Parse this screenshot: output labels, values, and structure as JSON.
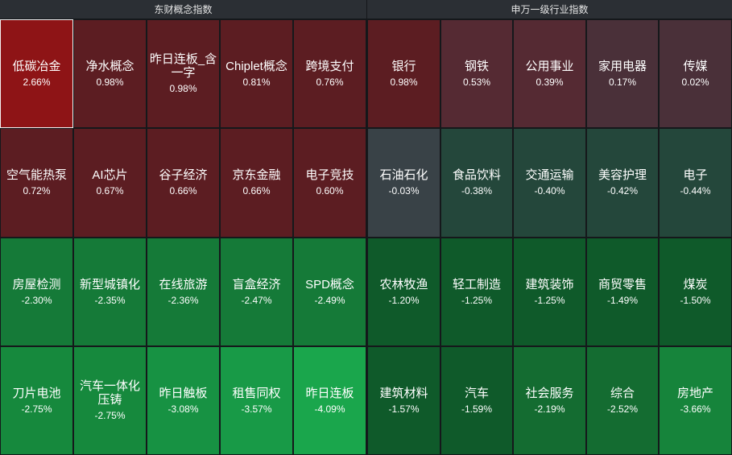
{
  "left_panel": {
    "title": "东财概念指数",
    "tiles": [
      {
        "name": "低碳冶金",
        "pct": "2.66%",
        "color": "#8e1416",
        "selected": true
      },
      {
        "name": "净水概念",
        "pct": "0.98%",
        "color": "#5c1d22"
      },
      {
        "name": "昨日连板_含一字",
        "pct": "0.98%",
        "color": "#5c1d22"
      },
      {
        "name": "Chiplet概念",
        "pct": "0.81%",
        "color": "#5c1d22"
      },
      {
        "name": "跨境支付",
        "pct": "0.76%",
        "color": "#5c1d22"
      },
      {
        "name": "空气能热泵",
        "pct": "0.72%",
        "color": "#5c1d22"
      },
      {
        "name": "AI芯片",
        "pct": "0.67%",
        "color": "#5c1d22"
      },
      {
        "name": "谷子经济",
        "pct": "0.66%",
        "color": "#5c1d22"
      },
      {
        "name": "京东金融",
        "pct": "0.66%",
        "color": "#5c1d22"
      },
      {
        "name": "电子竞技",
        "pct": "0.60%",
        "color": "#5c1d22"
      },
      {
        "name": "房屋检测",
        "pct": "-2.30%",
        "color": "#157a38"
      },
      {
        "name": "新型城镇化",
        "pct": "-2.35%",
        "color": "#157a38"
      },
      {
        "name": "在线旅游",
        "pct": "-2.36%",
        "color": "#157a38"
      },
      {
        "name": "盲盒经济",
        "pct": "-2.47%",
        "color": "#157a38"
      },
      {
        "name": "SPD概念",
        "pct": "-2.49%",
        "color": "#157a38"
      },
      {
        "name": "刀片电池",
        "pct": "-2.75%",
        "color": "#16893d"
      },
      {
        "name": "汽车一体化压铸",
        "pct": "-2.75%",
        "color": "#16893d"
      },
      {
        "name": "昨日触板",
        "pct": "-3.08%",
        "color": "#179243"
      },
      {
        "name": "租售同权",
        "pct": "-3.57%",
        "color": "#189a47"
      },
      {
        "name": "昨日连板",
        "pct": "-4.09%",
        "color": "#1aa64c"
      }
    ]
  },
  "right_panel": {
    "title": "申万一级行业指数",
    "tiles": [
      {
        "name": "银行",
        "pct": "0.98%",
        "color": "#5c1d22"
      },
      {
        "name": "钢铁",
        "pct": "0.53%",
        "color": "#552a33"
      },
      {
        "name": "公用事业",
        "pct": "0.39%",
        "color": "#552a33"
      },
      {
        "name": "家用电器",
        "pct": "0.17%",
        "color": "#4a3039"
      },
      {
        "name": "传媒",
        "pct": "0.02%",
        "color": "#4a3039"
      },
      {
        "name": "石油石化",
        "pct": "-0.03%",
        "color": "#394247"
      },
      {
        "name": "食品饮料",
        "pct": "-0.38%",
        "color": "#24473b"
      },
      {
        "name": "交通运输",
        "pct": "-0.40%",
        "color": "#24473b"
      },
      {
        "name": "美容护理",
        "pct": "-0.42%",
        "color": "#24473b"
      },
      {
        "name": "电子",
        "pct": "-0.44%",
        "color": "#24473b"
      },
      {
        "name": "农林牧渔",
        "pct": "-1.20%",
        "color": "#0f5a2a"
      },
      {
        "name": "轻工制造",
        "pct": "-1.25%",
        "color": "#0f5a2a"
      },
      {
        "name": "建筑装饰",
        "pct": "-1.25%",
        "color": "#0f5a2a"
      },
      {
        "name": "商贸零售",
        "pct": "-1.49%",
        "color": "#0f5a2a"
      },
      {
        "name": "煤炭",
        "pct": "-1.50%",
        "color": "#0f5a2a"
      },
      {
        "name": "建筑材料",
        "pct": "-1.57%",
        "color": "#0f5a2a"
      },
      {
        "name": "汽车",
        "pct": "-1.59%",
        "color": "#0f5a2a"
      },
      {
        "name": "社会服务",
        "pct": "-2.19%",
        "color": "#146c31"
      },
      {
        "name": "综合",
        "pct": "-2.52%",
        "color": "#146c31"
      },
      {
        "name": "房地产",
        "pct": "-3.66%",
        "color": "#16843b"
      }
    ]
  }
}
